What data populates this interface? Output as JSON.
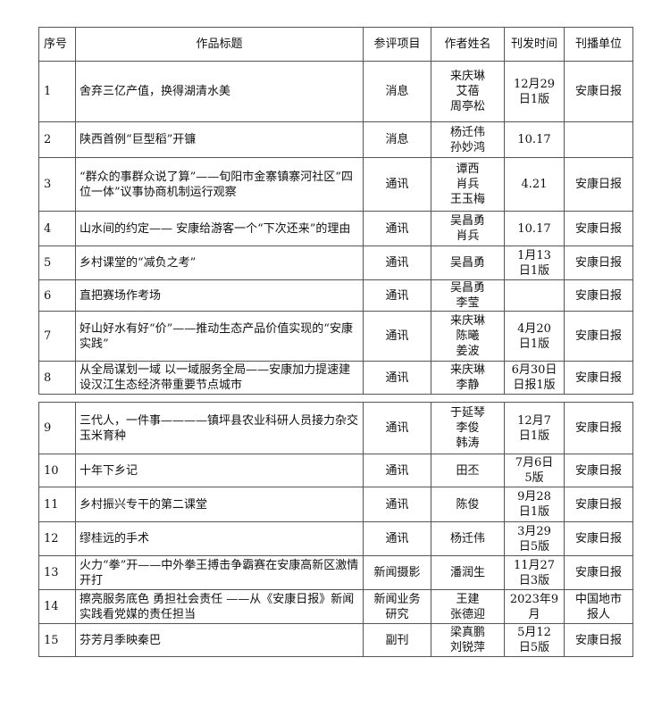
{
  "headers": [
    "序号",
    "作品标题",
    "参评项目",
    "作者姓名",
    "刊发时间",
    "刊播单位"
  ],
  "rows": [
    {
      "no": "1",
      "title": "舍弃三亿产值，换得湖清水美",
      "category": "消息",
      "authors": "来庆琳\n艾蓓\n周亭松",
      "date": "12月29\n日1版",
      "outlet": "安康日报"
    },
    {
      "no": "2",
      "title": "陕西首例“巨型稻”开镰",
      "category": "消息",
      "authors": "杨迁伟\n孙妙鸿",
      "date": "10.17",
      "outlet": ""
    },
    {
      "no": "3",
      "title": "“群众的事群众说了算”——旬阳市金寨镇寨河社区“四位一体”议事协商机制运行观察",
      "category": "通讯",
      "authors": "谭西\n肖兵\n王玉梅",
      "date": "4.21",
      "outlet": "安康日报"
    },
    {
      "no": "4",
      "title": "山水间的约定—— 安康给游客一个“下次还来”的理由",
      "category": "通讯",
      "authors": "吴昌勇\n肖兵",
      "date": "10.17",
      "outlet": "安康日报"
    },
    {
      "no": "5",
      "title": "乡村课堂的“减负之考”",
      "category": "通讯",
      "authors": "吴昌勇",
      "date": "1月13\n日1版",
      "outlet": "安康日报"
    },
    {
      "no": "6",
      "title": "直把赛场作考场",
      "category": "通讯",
      "authors": "吴昌勇\n李莹",
      "date": "",
      "outlet": "安康日报"
    },
    {
      "no": "7",
      "title": "好山好水有好“价”——推动生态产品价值实现的“安康实践”",
      "category": "通讯",
      "authors": "来庆琳\n陈曦\n姜波",
      "date": "4月20\n日1版",
      "outlet": "安康日报"
    },
    {
      "no": "8",
      "title": "从全局谋划一域 以一域服务全局——安康加力提速建设汉江生态经济带重要节点城市",
      "category": "通讯",
      "authors": "来庆琳\n李静",
      "date": "6月30日\n日报1版",
      "outlet": "安康日报"
    },
    {
      "no": "9",
      "title": "三代人，一件事————镇坪县农业科研人员接力杂交玉米育种",
      "category": "通讯",
      "authors": "于延琴\n李俊\n韩涛",
      "date": "12月7\n日1版",
      "outlet": "安康日报"
    },
    {
      "no": "10",
      "title": "十年下乡记",
      "category": "通讯",
      "authors": "田丕",
      "date": "7月6日\n5版",
      "outlet": "安康日报"
    },
    {
      "no": "11",
      "title": "乡村振兴专干的第二课堂",
      "category": "通讯",
      "authors": "陈俊",
      "date": "9月28\n日1版",
      "outlet": "安康日报"
    },
    {
      "no": "12",
      "title": "缪桂远的手术",
      "category": "通讯",
      "authors": "杨迁伟",
      "date": "3月29\n日5版",
      "outlet": "安康日报"
    },
    {
      "no": "13",
      "title": "火力“拳”开——中外拳王搏击争霸赛在安康高新区激情开打",
      "category": "新闻摄影",
      "authors": "潘润生",
      "date": "11月27\n日3版",
      "outlet": "安康日报"
    },
    {
      "no": "14",
      "title": "擦亮服务底色 勇担社会责任 ——从《安康日报》新闻实践看党媒的责任担当",
      "category": "新闻业务\n研究",
      "authors": "王建\n张德迎",
      "date": "2023年9\n月",
      "outlet": "中国地市\n报人"
    },
    {
      "no": "15",
      "title": "芬芳月季映秦巴",
      "category": "副刊",
      "authors": "梁真鹏\n刘锐萍",
      "date": "5月12\n日5版",
      "outlet": "安康日报"
    }
  ]
}
